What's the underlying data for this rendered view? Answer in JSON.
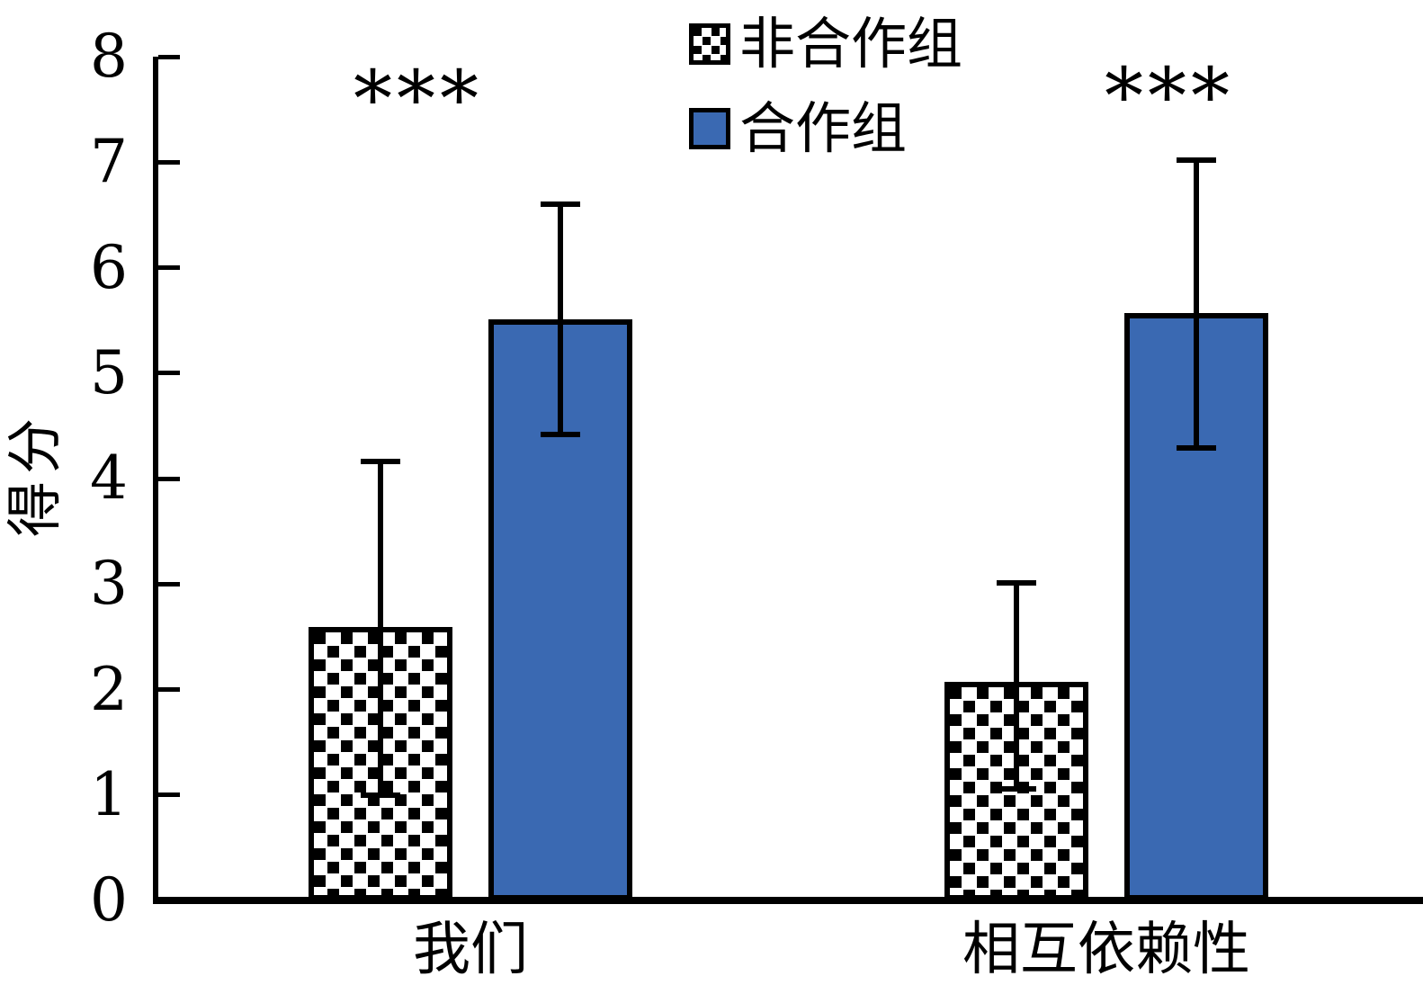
{
  "chart_data": {
    "type": "bar",
    "title": "",
    "categories": [
      "我们",
      "相互依赖性"
    ],
    "series": [
      {
        "name": "非合作组",
        "style": "hatched",
        "fill": "#FFFFFF",
        "hatch_color": "#000000",
        "values": [
          2.59,
          2.07
        ],
        "error_low": [
          1.59,
          1.01
        ],
        "error_high": [
          1.57,
          0.94
        ]
      },
      {
        "name": "合作组",
        "style": "solid",
        "color": "#3A69B2",
        "values": [
          5.51,
          5.57
        ],
        "error_low": [
          1.09,
          1.28
        ],
        "error_high": [
          1.09,
          1.45
        ]
      }
    ],
    "ylabel": "得分",
    "xlabel": "",
    "ylim": [
      0,
      8
    ],
    "yticks": [
      0,
      1,
      2,
      3,
      4,
      5,
      6,
      7,
      8
    ],
    "grid": false,
    "legend_position": "top-center",
    "error_bars": true,
    "annotations": [
      {
        "text": "***",
        "category": "我们"
      },
      {
        "text": "***",
        "category": "相互依赖性"
      }
    ]
  },
  "colors": {
    "bar_blue": "#3A69B2",
    "axis": "#000000",
    "background": "#FFFFFF"
  }
}
